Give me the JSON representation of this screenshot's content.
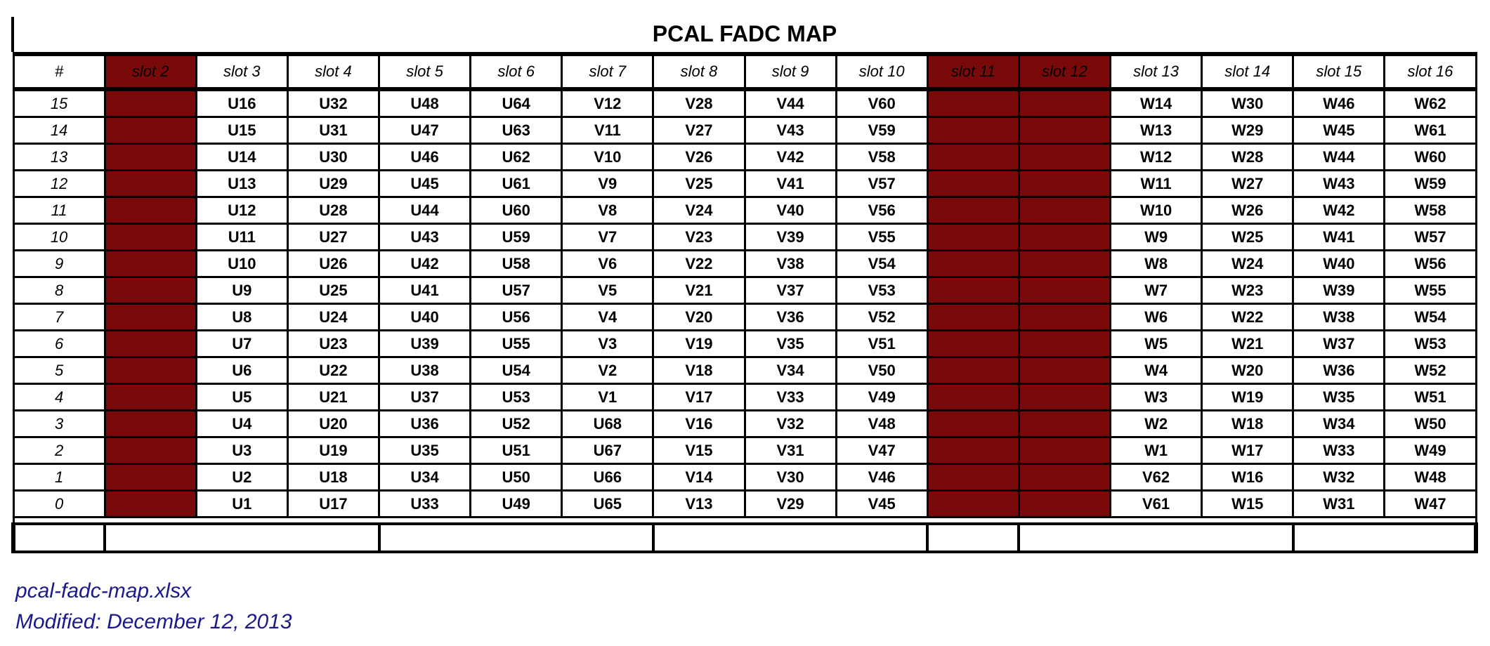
{
  "title": "PCAL FADC MAP",
  "dead_color": "#7a0a0a",
  "columns": [
    {
      "label": "#",
      "dead": false
    },
    {
      "label": "slot 2",
      "dead": true
    },
    {
      "label": "slot 3",
      "dead": false
    },
    {
      "label": "slot 4",
      "dead": false
    },
    {
      "label": "slot 5",
      "dead": false
    },
    {
      "label": "slot 6",
      "dead": false
    },
    {
      "label": "slot 7",
      "dead": false
    },
    {
      "label": "slot 8",
      "dead": false
    },
    {
      "label": "slot 9",
      "dead": false
    },
    {
      "label": "slot 10",
      "dead": false
    },
    {
      "label": "slot 11",
      "dead": true
    },
    {
      "label": "slot 12",
      "dead": true
    },
    {
      "label": "slot 13",
      "dead": false
    },
    {
      "label": "slot 14",
      "dead": false
    },
    {
      "label": "slot 15",
      "dead": false
    },
    {
      "label": "slot 16",
      "dead": false
    }
  ],
  "rows": [
    {
      "num": "15",
      "cells": [
        "",
        "U16",
        "U32",
        "U48",
        "U64",
        "V12",
        "V28",
        "V44",
        "V60",
        "",
        "",
        "W14",
        "W30",
        "W46",
        "W62"
      ]
    },
    {
      "num": "14",
      "cells": [
        "",
        "U15",
        "U31",
        "U47",
        "U63",
        "V11",
        "V27",
        "V43",
        "V59",
        "",
        "",
        "W13",
        "W29",
        "W45",
        "W61"
      ]
    },
    {
      "num": "13",
      "cells": [
        "",
        "U14",
        "U30",
        "U46",
        "U62",
        "V10",
        "V26",
        "V42",
        "V58",
        "",
        "",
        "W12",
        "W28",
        "W44",
        "W60"
      ]
    },
    {
      "num": "12",
      "cells": [
        "",
        "U13",
        "U29",
        "U45",
        "U61",
        "V9",
        "V25",
        "V41",
        "V57",
        "",
        "",
        "W11",
        "W27",
        "W43",
        "W59"
      ]
    },
    {
      "num": "11",
      "cells": [
        "",
        "U12",
        "U28",
        "U44",
        "U60",
        "V8",
        "V24",
        "V40",
        "V56",
        "",
        "",
        "W10",
        "W26",
        "W42",
        "W58"
      ]
    },
    {
      "num": "10",
      "cells": [
        "",
        "U11",
        "U27",
        "U43",
        "U59",
        "V7",
        "V23",
        "V39",
        "V55",
        "",
        "",
        "W9",
        "W25",
        "W41",
        "W57"
      ]
    },
    {
      "num": "9",
      "cells": [
        "",
        "U10",
        "U26",
        "U42",
        "U58",
        "V6",
        "V22",
        "V38",
        "V54",
        "",
        "",
        "W8",
        "W24",
        "W40",
        "W56"
      ]
    },
    {
      "num": "8",
      "cells": [
        "",
        "U9",
        "U25",
        "U41",
        "U57",
        "V5",
        "V21",
        "V37",
        "V53",
        "",
        "",
        "W7",
        "W23",
        "W39",
        "W55"
      ]
    },
    {
      "num": "7",
      "cells": [
        "",
        "U8",
        "U24",
        "U40",
        "U56",
        "V4",
        "V20",
        "V36",
        "V52",
        "",
        "",
        "W6",
        "W22",
        "W38",
        "W54"
      ]
    },
    {
      "num": "6",
      "cells": [
        "",
        "U7",
        "U23",
        "U39",
        "U55",
        "V3",
        "V19",
        "V35",
        "V51",
        "",
        "",
        "W5",
        "W21",
        "W37",
        "W53"
      ]
    },
    {
      "num": "5",
      "cells": [
        "",
        "U6",
        "U22",
        "U38",
        "U54",
        "V2",
        "V18",
        "V34",
        "V50",
        "",
        "",
        "W4",
        "W20",
        "W36",
        "W52"
      ]
    },
    {
      "num": "4",
      "cells": [
        "",
        "U5",
        "U21",
        "U37",
        "U53",
        "V1",
        "V17",
        "V33",
        "V49",
        "",
        "",
        "W3",
        "W19",
        "W35",
        "W51"
      ]
    },
    {
      "num": "3",
      "cells": [
        "",
        "U4",
        "U20",
        "U36",
        "U52",
        "U68",
        "V16",
        "V32",
        "V48",
        "",
        "",
        "W2",
        "W18",
        "W34",
        "W50"
      ]
    },
    {
      "num": "2",
      "cells": [
        "",
        "U3",
        "U19",
        "U35",
        "U51",
        "U67",
        "V15",
        "V31",
        "V47",
        "",
        "",
        "W1",
        "W17",
        "W33",
        "W49"
      ]
    },
    {
      "num": "1",
      "cells": [
        "",
        "U2",
        "U18",
        "U34",
        "U50",
        "U66",
        "V14",
        "V30",
        "V46",
        "",
        "",
        "V62",
        "W16",
        "W32",
        "W48"
      ]
    },
    {
      "num": "0",
      "cells": [
        "",
        "U1",
        "U17",
        "U33",
        "U49",
        "U65",
        "V13",
        "V29",
        "V45",
        "",
        "",
        "V61",
        "W15",
        "W31",
        "W47"
      ]
    }
  ],
  "footer_spans": [
    1,
    3,
    3,
    3,
    1,
    3,
    2
  ],
  "notes": {
    "filename": "pcal-fadc-map.xlsx",
    "modified": "Modified: December 12, 2013"
  }
}
